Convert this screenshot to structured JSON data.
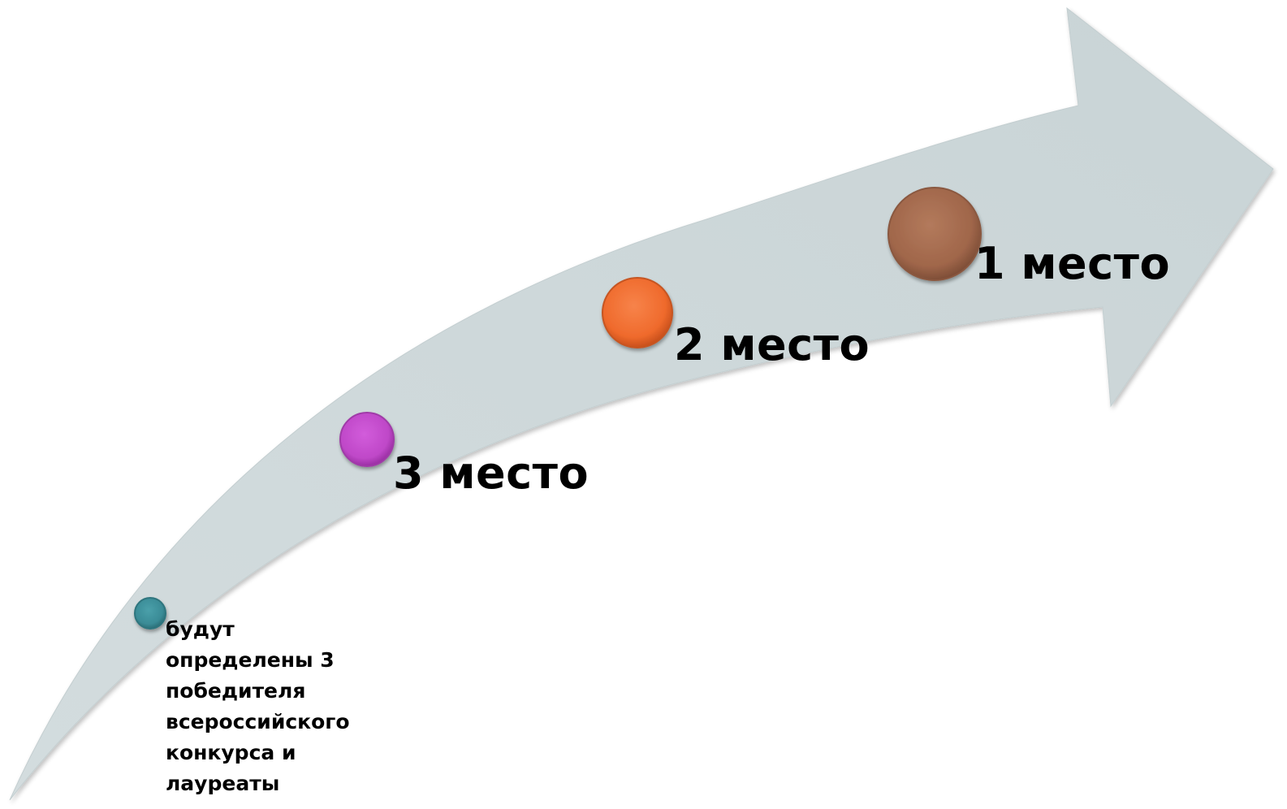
{
  "stages": {
    "first_label": "1 место",
    "second_label": "2 место",
    "third_label": "3 место",
    "note": "будут\nопределены 3\nпобедителя\nвсероссийского\nконкурса и\nлауреаты"
  },
  "colors": {
    "arrow_fill": "#cdd8da",
    "dot_first": "#a0664a",
    "dot_second": "#ef6a2c",
    "dot_third": "#bf48c8",
    "dot_note": "#3a8b96"
  }
}
